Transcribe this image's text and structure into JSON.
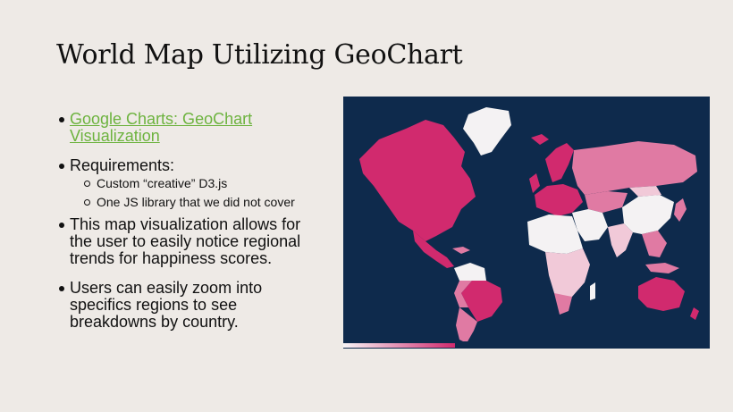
{
  "slide": {
    "title": "World Map Utilizing GeoChart",
    "bullets": {
      "link_text": "Google Charts: GeoChart Visualization",
      "requirements_label": "Requirements:",
      "requirements": [
        "Custom “creative” D3.js",
        "One JS library that we did not cover"
      ],
      "point_2": "This map visualization allows for the user to easily notice regional trends for happiness scores.",
      "point_3": "Users can easily zoom into specifics regions to see breakdowns by country."
    }
  },
  "map": {
    "colors": {
      "ocean": "#0e2a4c",
      "high": "#d12a6e",
      "mid": "#e07aa3",
      "low": "#f1c9d8",
      "no_data": "#f4f2f3"
    },
    "legend": {
      "min": "",
      "max": ""
    }
  }
}
